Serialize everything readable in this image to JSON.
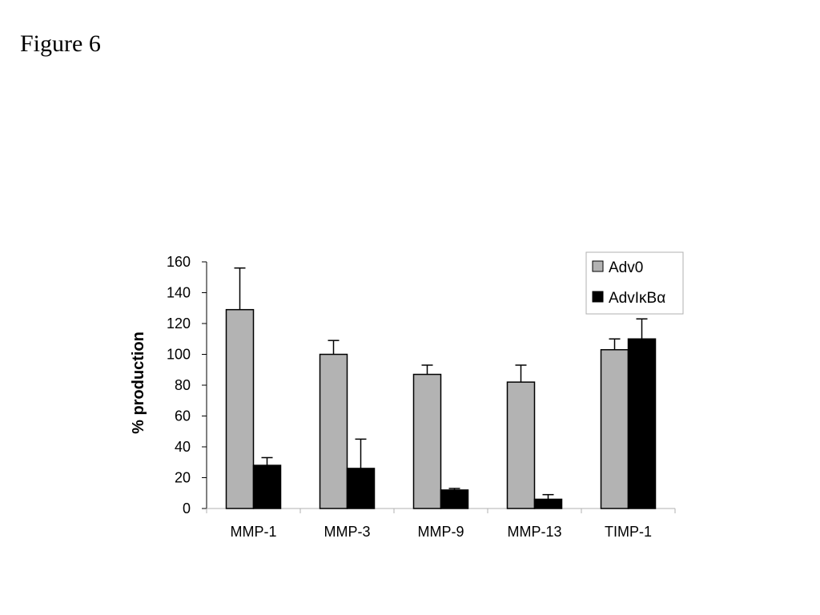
{
  "figure_label": "Figure 6",
  "chart_data": {
    "type": "bar",
    "ylabel": "% production",
    "xlabel": "",
    "ylim": [
      0,
      160
    ],
    "yticks": [
      "0",
      "20",
      "40",
      "60",
      "80",
      "100",
      "120",
      "140",
      "160"
    ],
    "categories": [
      "MMP-1",
      "MMP-3",
      "MMP-9",
      "MMP-13",
      "TIMP-1"
    ],
    "series": [
      {
        "name": "Adv0",
        "color": "#b3b3b3",
        "values": [
          129,
          100,
          87,
          82,
          103
        ],
        "errors": [
          27,
          9,
          6,
          11,
          7
        ]
      },
      {
        "name": "AdvIκBα",
        "color": "#000000",
        "values": [
          28,
          26,
          12,
          6,
          110
        ],
        "errors": [
          5,
          19,
          1,
          3,
          13
        ]
      }
    ],
    "legend_position": "top-right",
    "grid": false
  }
}
